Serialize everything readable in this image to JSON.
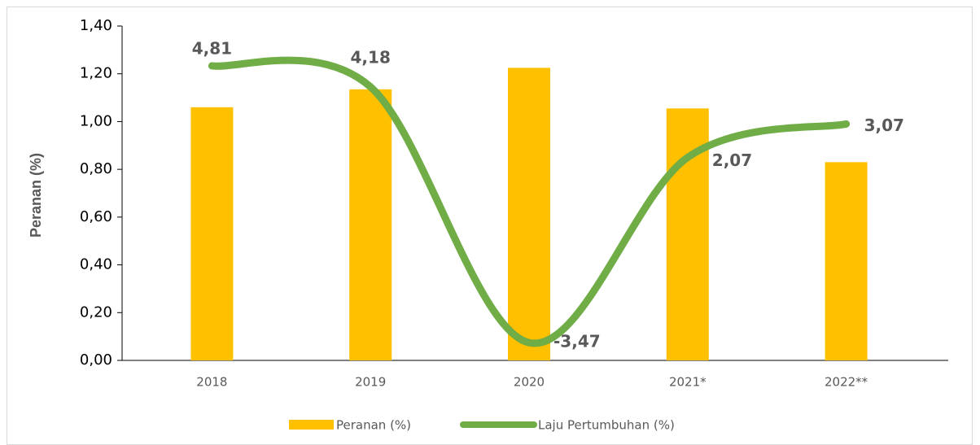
{
  "chart_data": {
    "type": "bar-line",
    "categories": [
      "2018",
      "2019",
      "2020",
      "2021*",
      "2022**"
    ],
    "ylabel": "Peranan (%)",
    "ylim": [
      0,
      1.4
    ],
    "yticks": [
      {
        "value": 0,
        "label": "0,00"
      },
      {
        "value": 0.2,
        "label": "0,20"
      },
      {
        "value": 0.4,
        "label": "0,40"
      },
      {
        "value": 0.6,
        "label": "0,60"
      },
      {
        "value": 0.8,
        "label": "0,80"
      },
      {
        "value": 1.0,
        "label": "1,00"
      },
      {
        "value": 1.2,
        "label": "1,20"
      },
      {
        "value": 1.4,
        "label": "1,40"
      }
    ],
    "y2lim": [
      -4,
      6
    ],
    "legend": "bottom",
    "series": [
      {
        "name": "Peranan (%)",
        "type": "bar",
        "color": "#ffc000",
        "values": [
          1.06,
          1.135,
          1.225,
          1.055,
          0.83
        ]
      },
      {
        "name": "Laju Pertumbuhan (%)",
        "type": "line",
        "axis": "y2",
        "smooth": true,
        "color": "#70ad47",
        "values": [
          4.81,
          4.18,
          -3.47,
          2.07,
          3.07
        ],
        "value_labels": [
          "4,81",
          "4,18",
          "-3,47",
          "2,07",
          "3,07"
        ]
      }
    ]
  }
}
